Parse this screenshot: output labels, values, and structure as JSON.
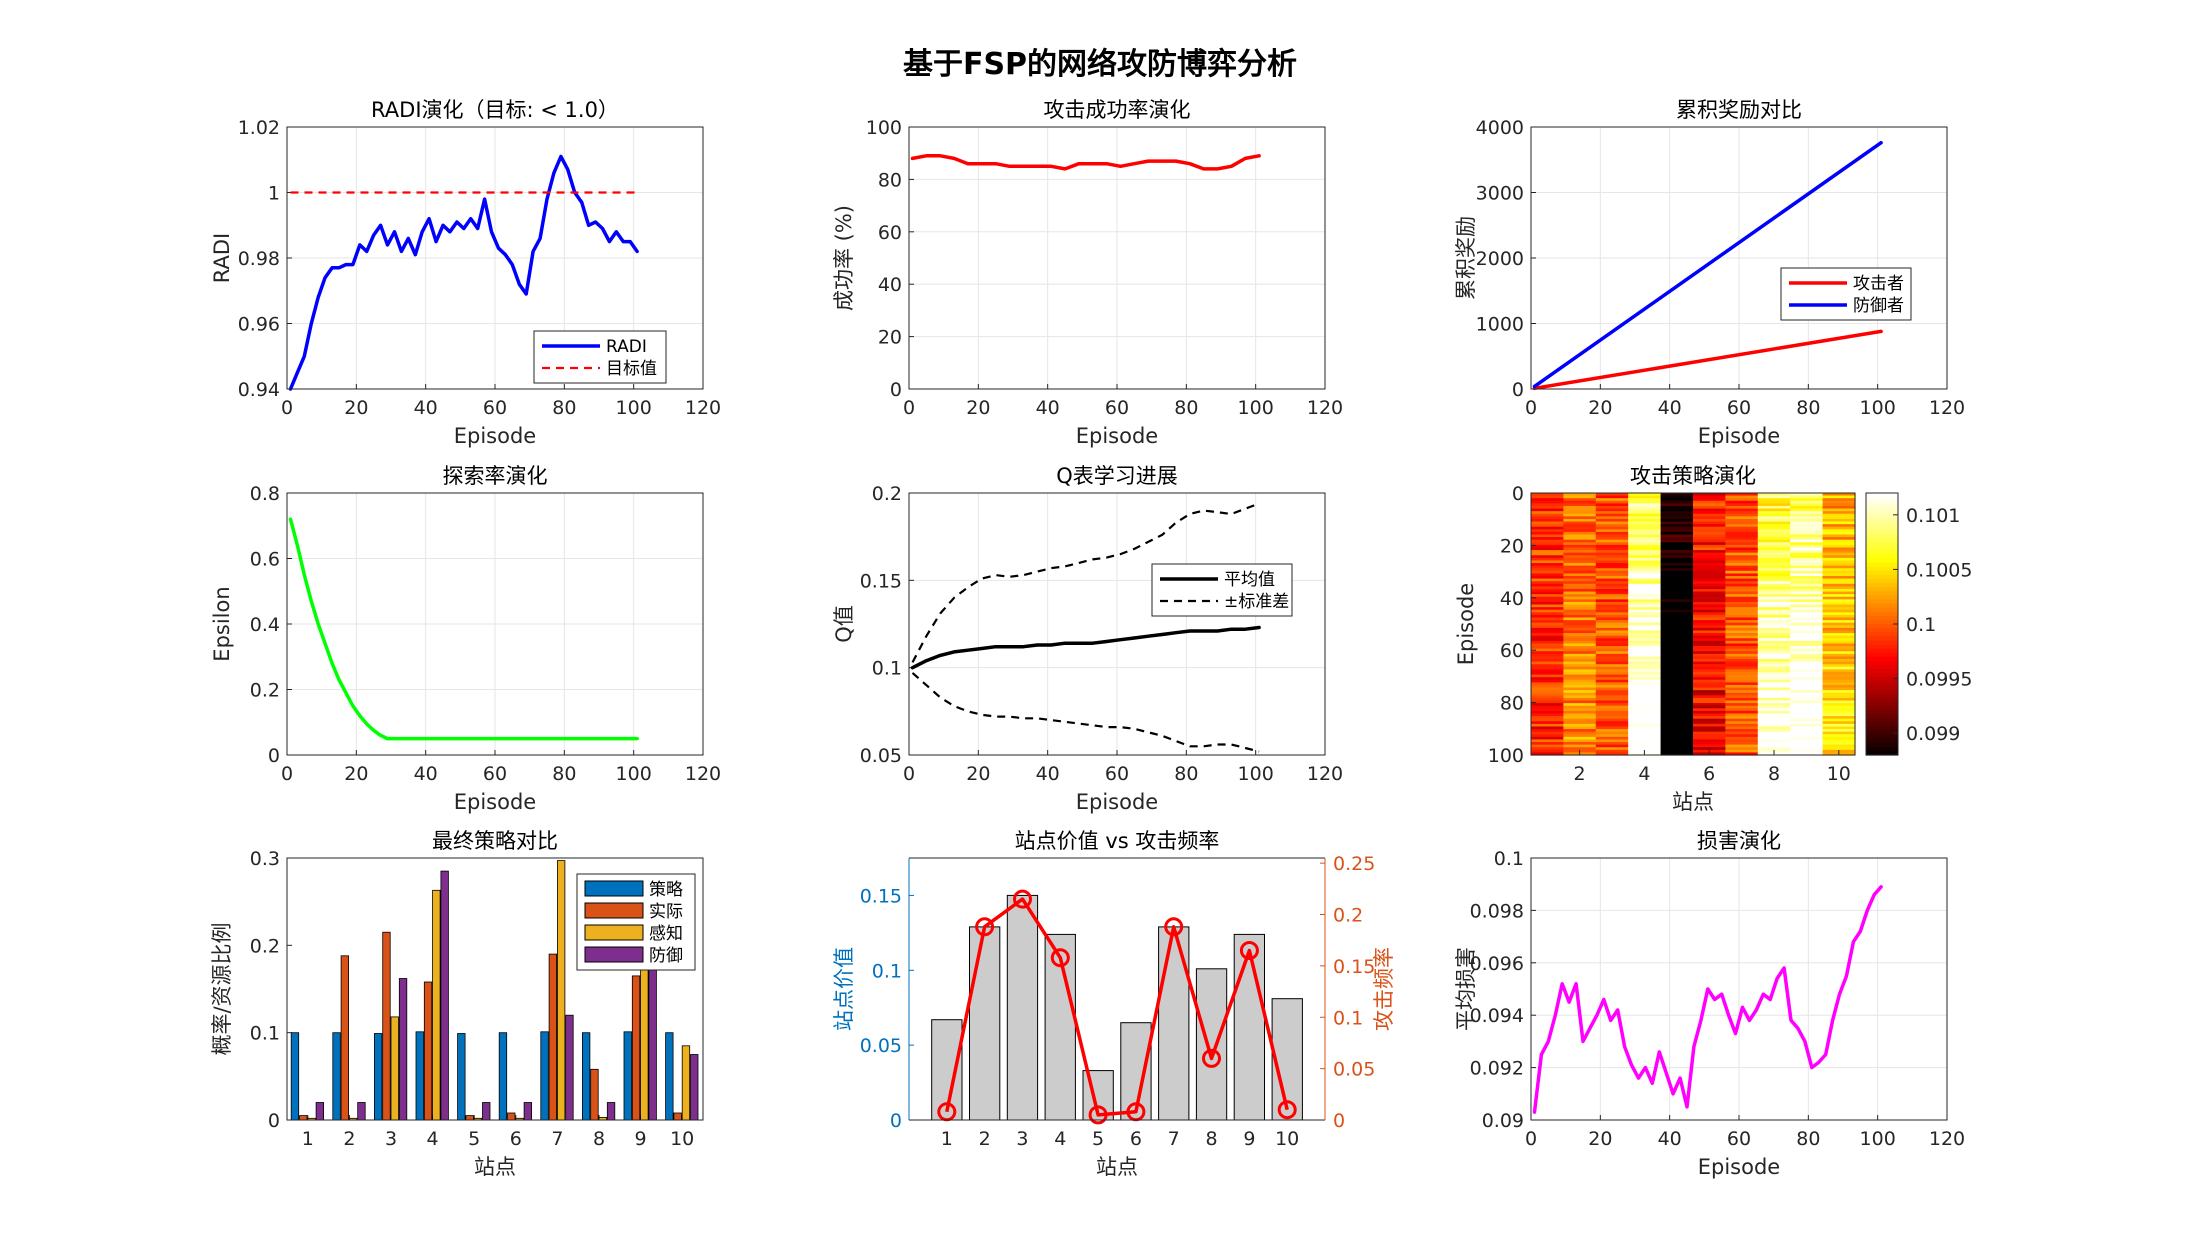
{
  "figure": {
    "title": "基于FSP的网络攻防博弈分析"
  },
  "chart_data": [
    {
      "id": "radi",
      "type": "line",
      "title": "RADI演化（目标: < 1.0）",
      "xlabel": "Episode",
      "ylabel": "RADI",
      "xlim": [
        0,
        120
      ],
      "ylim": [
        0.94,
        1.02
      ],
      "xticks": [
        0,
        20,
        40,
        60,
        80,
        100,
        120
      ],
      "xtick_labels": [
        "0",
        "20",
        "40",
        "60",
        "80",
        "100",
        "120"
      ],
      "yticks": [
        0.94,
        0.96,
        0.98,
        1.0,
        1.02
      ],
      "ytick_labels": [
        "0.94",
        "0.96",
        "0.98",
        "1",
        "1.02"
      ],
      "grid": true,
      "legend": "bottom-right",
      "series": [
        {
          "name": "RADI",
          "color": "#0000ff",
          "style": "solid",
          "x": [
            1,
            3,
            5,
            7,
            9,
            11,
            13,
            15,
            17,
            19,
            21,
            23,
            25,
            27,
            29,
            31,
            33,
            35,
            37,
            39,
            41,
            43,
            45,
            47,
            49,
            51,
            53,
            55,
            57,
            59,
            61,
            63,
            65,
            67,
            69,
            71,
            73,
            75,
            77,
            79,
            81,
            83,
            85,
            87,
            89,
            91,
            93,
            95,
            97,
            99,
            101
          ],
          "y": [
            0.94,
            0.945,
            0.95,
            0.96,
            0.968,
            0.974,
            0.977,
            0.977,
            0.978,
            0.978,
            0.984,
            0.982,
            0.987,
            0.99,
            0.984,
            0.988,
            0.982,
            0.986,
            0.981,
            0.988,
            0.992,
            0.985,
            0.99,
            0.988,
            0.991,
            0.989,
            0.992,
            0.989,
            0.998,
            0.988,
            0.983,
            0.981,
            0.978,
            0.972,
            0.969,
            0.982,
            0.986,
            0.998,
            1.006,
            1.011,
            1.007,
            1.0,
            0.997,
            0.99,
            0.991,
            0.989,
            0.985,
            0.988,
            0.985,
            0.985,
            0.982
          ]
        },
        {
          "name": "目标值",
          "color": "#ff0000",
          "style": "dashed",
          "x": [
            1,
            101
          ],
          "y": [
            1.0,
            1.0
          ]
        }
      ]
    },
    {
      "id": "success",
      "type": "line",
      "title": "攻击成功率演化",
      "xlabel": "Episode",
      "ylabel": "成功率 (%)",
      "xlim": [
        0,
        120
      ],
      "ylim": [
        0,
        100
      ],
      "xticks": [
        0,
        20,
        40,
        60,
        80,
        100,
        120
      ],
      "xtick_labels": [
        "0",
        "20",
        "40",
        "60",
        "80",
        "100",
        "120"
      ],
      "yticks": [
        0,
        20,
        40,
        60,
        80,
        100
      ],
      "ytick_labels": [
        "0",
        "20",
        "40",
        "60",
        "80",
        "100"
      ],
      "grid": true,
      "series": [
        {
          "color": "#ff0000",
          "style": "solid",
          "x": [
            1,
            5,
            9,
            13,
            17,
            21,
            25,
            29,
            33,
            37,
            41,
            45,
            49,
            53,
            57,
            61,
            65,
            69,
            73,
            77,
            81,
            85,
            89,
            93,
            97,
            101
          ],
          "y": [
            88,
            89,
            89,
            88,
            86,
            86,
            86,
            85,
            85,
            85,
            85,
            84,
            86,
            86,
            86,
            85,
            86,
            87,
            87,
            87,
            86,
            84,
            84,
            85,
            88,
            89
          ]
        }
      ]
    },
    {
      "id": "reward",
      "type": "line",
      "title": "累积奖励对比",
      "xlabel": "Episode",
      "ylabel": "累积奖励",
      "xlim": [
        0,
        120
      ],
      "ylim": [
        0,
        4000
      ],
      "xticks": [
        0,
        20,
        40,
        60,
        80,
        100,
        120
      ],
      "xtick_labels": [
        "0",
        "20",
        "40",
        "60",
        "80",
        "100",
        "120"
      ],
      "yticks": [
        0,
        1000,
        2000,
        3000,
        4000
      ],
      "ytick_labels": [
        "0",
        "1000",
        "2000",
        "3000",
        "4000"
      ],
      "grid": true,
      "legend": "right",
      "series": [
        {
          "name": "攻击者",
          "color": "#ff0000",
          "style": "solid",
          "x": [
            1,
            101
          ],
          "y": [
            10,
            880
          ]
        },
        {
          "name": "防御者",
          "color": "#0000ff",
          "style": "solid",
          "x": [
            1,
            101
          ],
          "y": [
            40,
            3760
          ]
        }
      ]
    },
    {
      "id": "epsilon",
      "type": "line",
      "title": "探索率演化",
      "xlabel": "Episode",
      "ylabel": "Epsilon",
      "xlim": [
        0,
        120
      ],
      "ylim": [
        0,
        0.8
      ],
      "xticks": [
        0,
        20,
        40,
        60,
        80,
        100,
        120
      ],
      "xtick_labels": [
        "0",
        "20",
        "40",
        "60",
        "80",
        "100",
        "120"
      ],
      "yticks": [
        0,
        0.2,
        0.4,
        0.6,
        0.8
      ],
      "ytick_labels": [
        "0",
        "0.2",
        "0.4",
        "0.6",
        "0.8"
      ],
      "grid": true,
      "series": [
        {
          "color": "#00ff00",
          "style": "solid",
          "x": [
            1,
            3,
            5,
            7,
            9,
            11,
            13,
            15,
            17,
            19,
            21,
            23,
            25,
            27,
            29,
            35,
            45,
            55,
            65,
            75,
            85,
            95,
            101
          ],
          "y": [
            0.72,
            0.64,
            0.55,
            0.47,
            0.4,
            0.34,
            0.28,
            0.23,
            0.19,
            0.15,
            0.12,
            0.095,
            0.075,
            0.06,
            0.05,
            0.05,
            0.05,
            0.05,
            0.05,
            0.05,
            0.05,
            0.05,
            0.05
          ]
        }
      ]
    },
    {
      "id": "qtable",
      "type": "line",
      "title": "Q表学习进展",
      "xlabel": "Episode",
      "ylabel": "Q值",
      "xlim": [
        0,
        120
      ],
      "ylim": [
        0.05,
        0.2
      ],
      "xticks": [
        0,
        20,
        40,
        60,
        80,
        100,
        120
      ],
      "xtick_labels": [
        "0",
        "20",
        "40",
        "60",
        "80",
        "100",
        "120"
      ],
      "yticks": [
        0.05,
        0.1,
        0.15,
        0.2
      ],
      "ytick_labels": [
        "0.05",
        "0.1",
        "0.15",
        "0.2"
      ],
      "grid": true,
      "legend": "right",
      "series": [
        {
          "name": "平均值",
          "color": "#000000",
          "style": "solid",
          "x": [
            1,
            5,
            9,
            13,
            17,
            21,
            25,
            29,
            33,
            37,
            41,
            45,
            49,
            53,
            57,
            61,
            65,
            69,
            73,
            77,
            81,
            85,
            89,
            93,
            97,
            101
          ],
          "y": [
            0.1,
            0.104,
            0.107,
            0.109,
            0.11,
            0.111,
            0.112,
            0.112,
            0.112,
            0.113,
            0.113,
            0.114,
            0.114,
            0.114,
            0.115,
            0.116,
            0.117,
            0.118,
            0.119,
            0.12,
            0.121,
            0.121,
            0.121,
            0.122,
            0.122,
            0.123
          ]
        },
        {
          "name": "±标准差",
          "color": "#000000",
          "style": "dashed",
          "x": [
            1,
            5,
            9,
            13,
            17,
            21,
            25,
            29,
            33,
            37,
            41,
            45,
            49,
            53,
            57,
            61,
            65,
            69,
            73,
            77,
            81,
            85,
            89,
            93,
            97,
            101
          ],
          "y": [
            0.103,
            0.118,
            0.131,
            0.14,
            0.146,
            0.151,
            0.153,
            0.152,
            0.153,
            0.155,
            0.157,
            0.158,
            0.16,
            0.162,
            0.163,
            0.165,
            0.168,
            0.172,
            0.176,
            0.183,
            0.188,
            0.19,
            0.189,
            0.188,
            0.191,
            0.194
          ]
        },
        {
          "color": "#000000",
          "style": "dashed",
          "x": [
            1,
            5,
            9,
            13,
            17,
            21,
            25,
            29,
            33,
            37,
            41,
            45,
            49,
            53,
            57,
            61,
            65,
            69,
            73,
            77,
            81,
            85,
            89,
            93,
            97,
            101
          ],
          "y": [
            0.097,
            0.09,
            0.083,
            0.078,
            0.075,
            0.073,
            0.072,
            0.072,
            0.071,
            0.071,
            0.07,
            0.069,
            0.068,
            0.067,
            0.066,
            0.066,
            0.065,
            0.063,
            0.061,
            0.058,
            0.055,
            0.055,
            0.056,
            0.056,
            0.054,
            0.052
          ]
        }
      ]
    },
    {
      "id": "heatmap",
      "type": "heatmap",
      "title": "攻击策略演化",
      "xlabel": "站点",
      "ylabel": "Episode",
      "xticks": [
        2,
        4,
        6,
        8,
        10
      ],
      "xtick_labels": [
        "2",
        "4",
        "6",
        "8",
        "10"
      ],
      "yticks": [
        0,
        20,
        40,
        60,
        80,
        100
      ],
      "ytick_labels": [
        "0",
        "20",
        "40",
        "60",
        "80",
        "100"
      ],
      "columns": 10,
      "rows": 101,
      "column_means": [
        0.0999,
        0.1001,
        0.1,
        0.1008,
        0.099,
        0.0998,
        0.1,
        0.1007,
        0.1008,
        0.1003
      ],
      "clim": [
        0.0988,
        0.1012
      ],
      "colormap": "hot",
      "colorbar": {
        "ticks": [
          0.099,
          0.0995,
          0.1,
          0.1005,
          0.101
        ],
        "tick_labels": [
          "0.099",
          "0.0995",
          "0.1",
          "0.1005",
          "0.101"
        ]
      }
    },
    {
      "id": "final",
      "type": "bar",
      "title": "最终策略对比",
      "xlabel": "站点",
      "ylabel": "概率/资源比例",
      "categories": [
        "1",
        "2",
        "3",
        "4",
        "5",
        "6",
        "7",
        "8",
        "9",
        "10"
      ],
      "ylim": [
        0,
        0.3
      ],
      "yticks": [
        0,
        0.1,
        0.2,
        0.3
      ],
      "ytick_labels": [
        "0",
        "0.1",
        "0.2",
        "0.3"
      ],
      "legend": "top-right",
      "series": [
        {
          "name": "策略",
          "color": "#0072bd",
          "values": [
            0.1,
            0.1,
            0.099,
            0.101,
            0.099,
            0.1,
            0.101,
            0.1,
            0.101,
            0.1
          ]
        },
        {
          "name": "实际",
          "color": "#d95319",
          "values": [
            0.005,
            0.188,
            0.215,
            0.158,
            0.005,
            0.008,
            0.19,
            0.058,
            0.165,
            0.008
          ]
        },
        {
          "name": "感知",
          "color": "#edb120",
          "values": [
            0.002,
            0.002,
            0.118,
            0.263,
            0.002,
            0.002,
            0.297,
            0.003,
            0.19,
            0.085
          ]
        },
        {
          "name": "防御",
          "color": "#7e2f8e",
          "values": [
            0.02,
            0.02,
            0.162,
            0.285,
            0.02,
            0.02,
            0.12,
            0.02,
            0.24,
            0.075
          ]
        }
      ]
    },
    {
      "id": "site",
      "type": "bar",
      "title": "站点价值 vs 攻击频率",
      "xlabel": "站点",
      "ylabel": "站点价值",
      "y2label": "攻击频率",
      "categories": [
        "1",
        "2",
        "3",
        "4",
        "5",
        "6",
        "7",
        "8",
        "9",
        "10"
      ],
      "ylim": [
        0,
        0.175
      ],
      "y2lim": [
        0,
        0.255
      ],
      "yticks": [
        0,
        0.05,
        0.1,
        0.15
      ],
      "ytick_labels": [
        "0",
        "0.05",
        "0.1",
        "0.15"
      ],
      "y2ticks": [
        0,
        0.05,
        0.1,
        0.15,
        0.2,
        0.25
      ],
      "y2tick_labels": [
        "0",
        "0.05",
        "0.1",
        "0.15",
        "0.2",
        "0.25"
      ],
      "left_axis_color": "#0072bd",
      "right_axis_color": "#d95319",
      "bar_color": "#cccccc",
      "line_color": "#ff0000",
      "values": [
        0.067,
        0.129,
        0.15,
        0.124,
        0.033,
        0.065,
        0.129,
        0.101,
        0.124,
        0.081
      ],
      "frequency": [
        0.008,
        0.188,
        0.215,
        0.158,
        0.005,
        0.008,
        0.188,
        0.06,
        0.165,
        0.01
      ]
    },
    {
      "id": "damage",
      "type": "line",
      "title": "损害演化",
      "xlabel": "Episode",
      "ylabel": "平均损害",
      "xlim": [
        0,
        120
      ],
      "ylim": [
        0.09,
        0.1
      ],
      "xticks": [
        0,
        20,
        40,
        60,
        80,
        100,
        120
      ],
      "xtick_labels": [
        "0",
        "20",
        "40",
        "60",
        "80",
        "100",
        "120"
      ],
      "yticks": [
        0.09,
        0.092,
        0.094,
        0.096,
        0.098,
        0.1
      ],
      "ytick_labels": [
        "0.09",
        "0.092",
        "0.094",
        "0.096",
        "0.098",
        "0.1"
      ],
      "grid": true,
      "series": [
        {
          "color": "#ff00ff",
          "style": "solid",
          "x": [
            1,
            3,
            5,
            7,
            9,
            11,
            13,
            15,
            17,
            19,
            21,
            23,
            25,
            27,
            29,
            31,
            33,
            35,
            37,
            39,
            41,
            43,
            45,
            47,
            49,
            51,
            53,
            55,
            57,
            59,
            61,
            63,
            65,
            67,
            69,
            71,
            73,
            75,
            77,
            79,
            81,
            83,
            85,
            87,
            89,
            91,
            93,
            95,
            97,
            99,
            101
          ],
          "y": [
            0.0903,
            0.0925,
            0.093,
            0.094,
            0.0952,
            0.0945,
            0.0952,
            0.093,
            0.0935,
            0.094,
            0.0946,
            0.0938,
            0.0942,
            0.0928,
            0.0921,
            0.0916,
            0.092,
            0.0914,
            0.0926,
            0.0918,
            0.091,
            0.0916,
            0.0905,
            0.0928,
            0.0938,
            0.095,
            0.0946,
            0.0948,
            0.094,
            0.0933,
            0.0943,
            0.0938,
            0.0942,
            0.0948,
            0.0946,
            0.0954,
            0.0958,
            0.0938,
            0.0935,
            0.093,
            0.092,
            0.0922,
            0.0925,
            0.0938,
            0.0948,
            0.0955,
            0.0968,
            0.0972,
            0.098,
            0.0986,
            0.0989
          ]
        }
      ]
    }
  ]
}
